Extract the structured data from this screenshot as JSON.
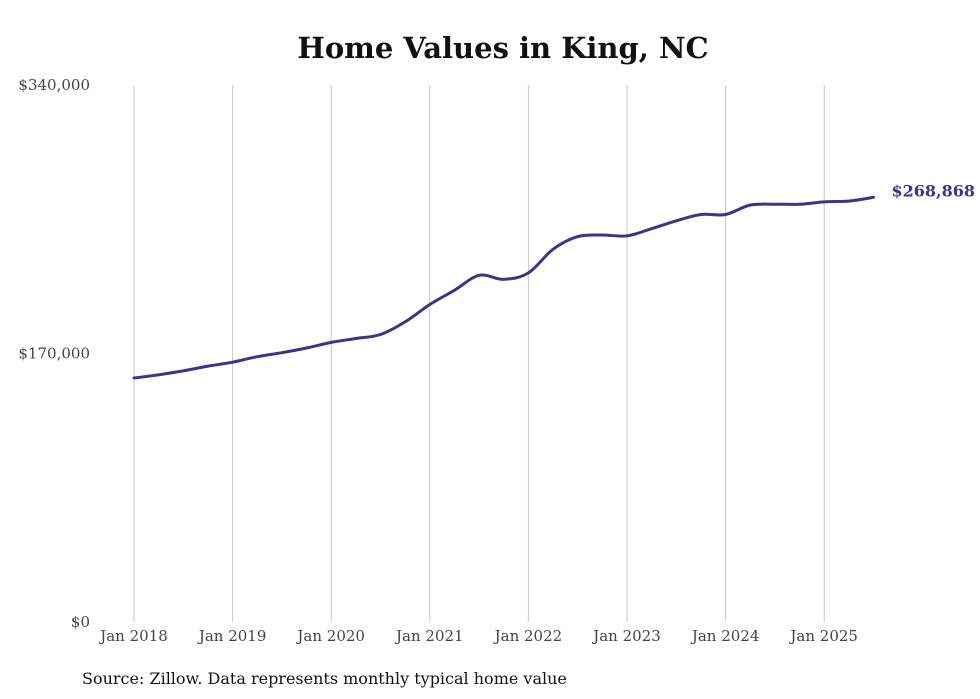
{
  "chart_data": {
    "type": "line",
    "title": "Home Values in King, NC",
    "xlabel": "",
    "ylabel": "",
    "ylim": [
      0,
      340000
    ],
    "y_ticks": [
      {
        "value": 0,
        "label": "$0"
      },
      {
        "value": 170000,
        "label": "$170,000"
      },
      {
        "value": 340000,
        "label": "$340,000"
      }
    ],
    "x_ticks": [
      "Jan 2018",
      "Jan 2019",
      "Jan 2020",
      "Jan 2021",
      "Jan 2022",
      "Jan 2023",
      "Jan 2024",
      "Jan 2025"
    ],
    "grid": "vertical gridlines at each January",
    "color": "#3d3389",
    "end_label": "$268,868",
    "source": "Source: Zillow. Data represents monthly typical home value",
    "series": [
      {
        "values": [
          {
            "x": "2018-01",
            "y": 154500
          },
          {
            "x": "2018-04",
            "y": 156500
          },
          {
            "x": "2018-07",
            "y": 159000
          },
          {
            "x": "2018-10",
            "y": 162000
          },
          {
            "x": "2019-01",
            "y": 164500
          },
          {
            "x": "2019-04",
            "y": 168000
          },
          {
            "x": "2019-07",
            "y": 170500
          },
          {
            "x": "2019-10",
            "y": 173500
          },
          {
            "x": "2020-01",
            "y": 177000
          },
          {
            "x": "2020-04",
            "y": 179500
          },
          {
            "x": "2020-07",
            "y": 182000
          },
          {
            "x": "2020-10",
            "y": 190000
          },
          {
            "x": "2021-01",
            "y": 201000
          },
          {
            "x": "2021-04",
            "y": 210000
          },
          {
            "x": "2021-07",
            "y": 219500
          },
          {
            "x": "2021-10",
            "y": 217000
          },
          {
            "x": "2022-01",
            "y": 221000
          },
          {
            "x": "2022-04",
            "y": 236000
          },
          {
            "x": "2022-07",
            "y": 244000
          },
          {
            "x": "2022-10",
            "y": 245000
          },
          {
            "x": "2023-01",
            "y": 244500
          },
          {
            "x": "2023-04",
            "y": 249000
          },
          {
            "x": "2023-07",
            "y": 254000
          },
          {
            "x": "2023-10",
            "y": 258000
          },
          {
            "x": "2024-01",
            "y": 258000
          },
          {
            "x": "2024-04",
            "y": 264000
          },
          {
            "x": "2024-07",
            "y": 264500
          },
          {
            "x": "2024-10",
            "y": 264500
          },
          {
            "x": "2025-01",
            "y": 266000
          },
          {
            "x": "2025-04",
            "y": 266500
          },
          {
            "x": "2025-07",
            "y": 268868
          }
        ]
      }
    ]
  }
}
